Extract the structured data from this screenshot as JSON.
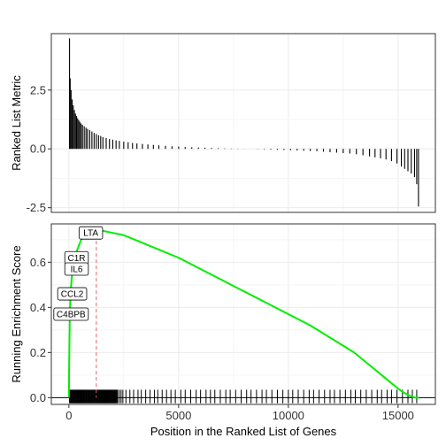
{
  "chart_data": {
    "type": "line",
    "x_label": "Position in the Ranked List of Genes",
    "x_ticks": [
      0,
      5000,
      10000,
      15000
    ],
    "x_tick_labels": [
      "0",
      "5000",
      "10000",
      "15000"
    ],
    "x_range": [
      -800,
      16700
    ],
    "top_panel": {
      "type": "bar",
      "y_label": "Ranked List Metric",
      "y_ticks": [
        -2.5,
        0.0,
        2.5
      ],
      "y_tick_labels": [
        "-2.5",
        "0.0",
        "2.5"
      ],
      "y_range": [
        -2.7,
        4.9
      ],
      "bars": [
        [
          30,
          4.7
        ],
        [
          60,
          3.0
        ],
        [
          100,
          2.5
        ],
        [
          150,
          2.1
        ],
        [
          200,
          1.85
        ],
        [
          250,
          1.65
        ],
        [
          300,
          1.5
        ],
        [
          350,
          1.4
        ],
        [
          400,
          1.3
        ],
        [
          450,
          1.22
        ],
        [
          500,
          1.15
        ],
        [
          560,
          1.08
        ],
        [
          620,
          1.02
        ],
        [
          700,
          0.96
        ],
        [
          780,
          0.9
        ],
        [
          850,
          0.85
        ],
        [
          950,
          0.8
        ],
        [
          1050,
          0.74
        ],
        [
          1150,
          0.68
        ],
        [
          1250,
          0.63
        ],
        [
          1350,
          0.58
        ],
        [
          1450,
          0.55
        ],
        [
          1550,
          0.5
        ],
        [
          1700,
          0.46
        ],
        [
          1850,
          0.42
        ],
        [
          2000,
          0.39
        ],
        [
          2150,
          0.36
        ],
        [
          2300,
          0.34
        ],
        [
          2500,
          0.31
        ],
        [
          2700,
          0.28
        ],
        [
          2900,
          0.25
        ],
        [
          3100,
          0.23
        ],
        [
          3350,
          0.21
        ],
        [
          3600,
          0.19
        ],
        [
          3850,
          0.17
        ],
        [
          4100,
          0.15
        ],
        [
          4400,
          0.13
        ],
        [
          4700,
          0.11
        ],
        [
          5000,
          0.1
        ],
        [
          5300,
          0.08
        ],
        [
          5600,
          0.07
        ],
        [
          5900,
          0.06
        ],
        [
          6200,
          0.05
        ],
        [
          6500,
          0.04
        ],
        [
          6800,
          0.03
        ],
        [
          7100,
          0.02
        ],
        [
          7400,
          0.015
        ],
        [
          7700,
          0.01
        ],
        [
          8000,
          0.005
        ],
        [
          8300,
          0.0
        ],
        [
          8600,
          -0.01
        ],
        [
          8900,
          -0.02
        ],
        [
          9200,
          -0.03
        ],
        [
          9500,
          -0.04
        ],
        [
          9800,
          -0.05
        ],
        [
          10100,
          -0.06
        ],
        [
          10400,
          -0.07
        ],
        [
          10700,
          -0.08
        ],
        [
          11000,
          -0.09
        ],
        [
          11300,
          -0.1
        ],
        [
          11600,
          -0.12
        ],
        [
          11900,
          -0.14
        ],
        [
          12200,
          -0.16
        ],
        [
          12500,
          -0.18
        ],
        [
          12800,
          -0.2
        ],
        [
          13100,
          -0.23
        ],
        [
          13400,
          -0.27
        ],
        [
          13700,
          -0.32
        ],
        [
          13950,
          -0.36
        ],
        [
          14200,
          -0.4
        ],
        [
          14450,
          -0.45
        ],
        [
          14700,
          -0.52
        ],
        [
          14950,
          -0.62
        ],
        [
          15150,
          -0.75
        ],
        [
          15300,
          -0.85
        ],
        [
          15450,
          -0.95
        ],
        [
          15600,
          -1.05
        ],
        [
          15750,
          -1.2
        ],
        [
          15850,
          -1.5
        ],
        [
          15930,
          -2.45
        ]
      ]
    },
    "bottom_panel": {
      "type": "line",
      "y_label": "Running Enrichment Score",
      "y_ticks": [
        0.0,
        0.2,
        0.4,
        0.6
      ],
      "y_tick_labels": [
        "0.0",
        "0.2",
        "0.4",
        "0.6"
      ],
      "y_range": [
        -0.03,
        0.77
      ],
      "line_color": "#00ee00",
      "series": [
        [
          0,
          0.0
        ],
        [
          10,
          0.12
        ],
        [
          20,
          0.2
        ],
        [
          40,
          0.36
        ],
        [
          60,
          0.42
        ],
        [
          90,
          0.48
        ],
        [
          120,
          0.52
        ],
        [
          160,
          0.56
        ],
        [
          200,
          0.59
        ],
        [
          260,
          0.62
        ],
        [
          330,
          0.64
        ],
        [
          400,
          0.66
        ],
        [
          480,
          0.68
        ],
        [
          560,
          0.7
        ],
        [
          650,
          0.71
        ],
        [
          750,
          0.72
        ],
        [
          850,
          0.73
        ],
        [
          950,
          0.735
        ],
        [
          1050,
          0.74
        ],
        [
          1150,
          0.745
        ],
        [
          1250,
          0.75
        ],
        [
          1500,
          0.74
        ],
        [
          2000,
          0.73
        ],
        [
          2500,
          0.72
        ],
        [
          3000,
          0.7
        ],
        [
          3500,
          0.68
        ],
        [
          4000,
          0.66
        ],
        [
          5000,
          0.62
        ],
        [
          6000,
          0.57
        ],
        [
          7000,
          0.52
        ],
        [
          8000,
          0.47
        ],
        [
          9000,
          0.42
        ],
        [
          10000,
          0.37
        ],
        [
          11000,
          0.32
        ],
        [
          12000,
          0.26
        ],
        [
          13000,
          0.2
        ],
        [
          14000,
          0.12
        ],
        [
          14500,
          0.08
        ],
        [
          15000,
          0.04
        ],
        [
          15300,
          0.02
        ],
        [
          15600,
          0.005
        ],
        [
          15800,
          0.0
        ],
        [
          15950,
          0.0
        ]
      ],
      "max_position": 1250,
      "zero_line": 0.0,
      "gene_hits": [
        30,
        60,
        90,
        120,
        150,
        180,
        210,
        240,
        270,
        300,
        330,
        360,
        390,
        420,
        450,
        480,
        510,
        540,
        570,
        600,
        630,
        660,
        690,
        720,
        750,
        780,
        810,
        840,
        870,
        900,
        930,
        960,
        990,
        1020,
        1050,
        1080,
        1110,
        1140,
        1170,
        1200,
        1230,
        1260,
        1290,
        1320,
        1350,
        1380,
        1410,
        1440,
        1470,
        1500,
        1530,
        1560,
        1590,
        1620,
        1650,
        1680,
        1710,
        1740,
        1770,
        1800,
        1830,
        1860,
        1890,
        1920,
        1950,
        1980,
        2010,
        2040,
        2070,
        2100,
        2130,
        2160,
        2190,
        2220,
        2300,
        2380,
        2460,
        2600,
        2780,
        2950,
        3150,
        3300,
        3500,
        3700,
        3900,
        4050,
        4250,
        4450,
        4650,
        4850,
        5100,
        5300,
        5550,
        5800,
        6000,
        6250,
        6450,
        6650,
        6900,
        7150,
        7350,
        7600,
        7850,
        8100,
        8300,
        8550,
        8800,
        9000,
        9250,
        9500,
        9750,
        10000,
        10200,
        10450,
        10700,
        10950,
        11150,
        11400,
        11650,
        11900,
        12100,
        12350,
        12600,
        12850,
        13050,
        13300,
        13550,
        13800,
        14050,
        14250,
        14500,
        14700,
        14950,
        15200,
        15450,
        15650,
        15850
      ],
      "gene_labels": [
        {
          "text": "LTA",
          "x": 1000,
          "y": 0.73
        },
        {
          "text": "C1R",
          "x": 350,
          "y": 0.62
        },
        {
          "text": "IL6",
          "x": 350,
          "y": 0.57
        },
        {
          "text": "CCL2",
          "x": 150,
          "y": 0.46
        },
        {
          "text": "C4BPB",
          "x": 100,
          "y": 0.37
        }
      ]
    }
  }
}
